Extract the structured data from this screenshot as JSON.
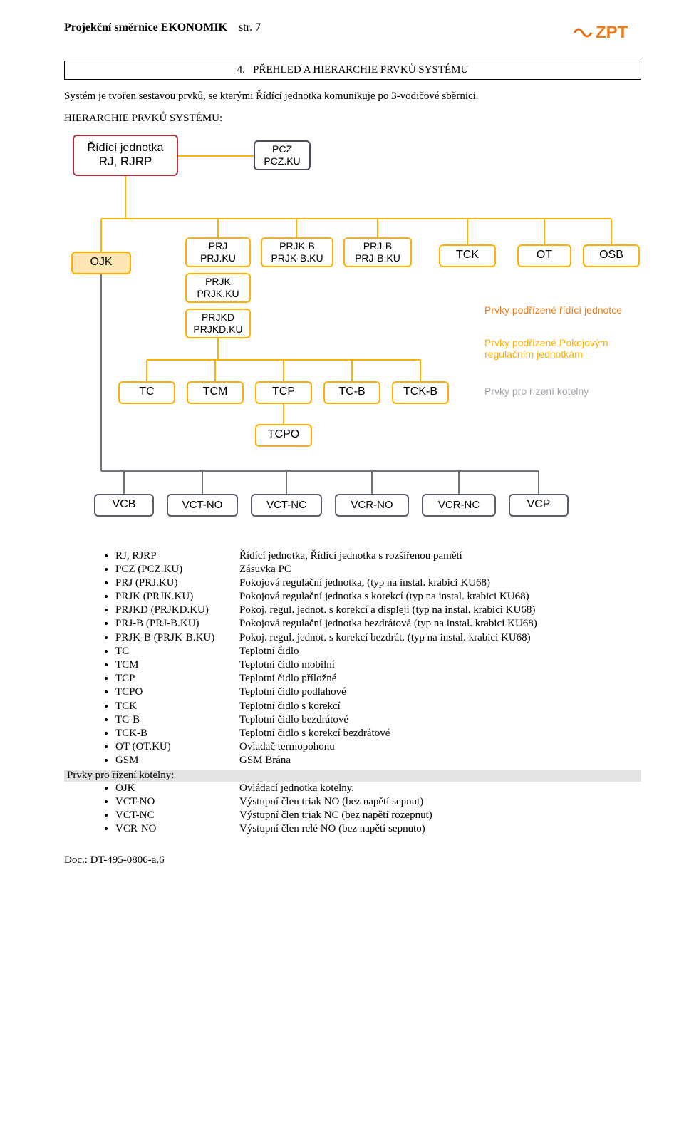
{
  "header": {
    "doc_title": "Projekční směrnice EKONOMIK",
    "page_label": "str.",
    "page_number": "7",
    "logo_text": "ZPT",
    "logo_color": "#ed7b16",
    "wave_color": "#e76b0f"
  },
  "section": {
    "number": "4.",
    "title": "PŘEHLED A HIERARCHIE PRVKŮ SYSTÉMU"
  },
  "intro": "Systém je tvořen sestavou prvků, se kterými Řídící jednotka komunikuje po 3-vodičové sběrnici.",
  "subheader": "HIERARCHIE PRVKŮ SYSTÉMU:",
  "diagram": {
    "colors": {
      "red_border": "#ae2f3e",
      "orange_border": "#ffb000",
      "orange_fill": "#ffe6b3",
      "gray_border": "#585e6e",
      "darkgray_border": "#494f60",
      "orange_line": "#ffb000",
      "gray_line": "#70747f",
      "legend_orange": "#ec7c1a",
      "legend_amber": "#ffb000",
      "legend_gray": "#a1a5ae"
    },
    "boxes": {
      "ridici": {
        "l1": "Řídící jednotka",
        "l2": "RJ, RJRP"
      },
      "pcz": {
        "l1": "PCZ",
        "l2": "PCZ.KU"
      },
      "ojk": {
        "l1": "OJK"
      },
      "prj": {
        "l1": "PRJ",
        "l2": "PRJ.KU"
      },
      "prjk": {
        "l1": "PRJK",
        "l2": "PRJK.KU"
      },
      "prjkd": {
        "l1": "PRJKD",
        "l2": "PRJKD.KU"
      },
      "prjkb": {
        "l1": "PRJK-B",
        "l2": "PRJK-B.KU"
      },
      "prjb": {
        "l1": "PRJ-B",
        "l2": "PRJ-B.KU"
      },
      "tck": {
        "l1": "TCK"
      },
      "ot": {
        "l1": "OT"
      },
      "osb": {
        "l1": "OSB"
      },
      "tc": {
        "l1": "TC"
      },
      "tcm": {
        "l1": "TCM"
      },
      "tcp": {
        "l1": "TCP"
      },
      "tcb": {
        "l1": "TC-B"
      },
      "tckb": {
        "l1": "TCK-B"
      },
      "tcpo": {
        "l1": "TCPO"
      },
      "vcb": {
        "l1": "VCB"
      },
      "vctno": {
        "l1": "VCT-NO"
      },
      "vctnc": {
        "l1": "VCT-NC"
      },
      "vcrno": {
        "l1": "VCR-NO"
      },
      "vcrnc": {
        "l1": "VCR-NC"
      },
      "vcp": {
        "l1": "VCP"
      }
    },
    "legend": {
      "l1": "Prvky podřízené řídící jednotce",
      "l2": "Prvky podřízené Pokojovým regulačním jednotkám",
      "l3": "Prvky pro řízení kotelny"
    }
  },
  "definitions": {
    "items": [
      {
        "term": "RJ, RJRP",
        "desc": "Řídící jednotka, Řídící jednotka s rozšířenou pamětí"
      },
      {
        "term": "PCZ (PCZ.KU)",
        "desc": "Zásuvka PC"
      },
      {
        "term": "PRJ (PRJ.KU)",
        "desc": "Pokojová regulační jednotka, (typ na instal. krabici KU68)"
      },
      {
        "term": "PRJK (PRJK.KU)",
        "desc": "Pokojová regulační jednotka s korekcí (typ na instal. krabici KU68)"
      },
      {
        "term": "PRJKD (PRJKD.KU)",
        "desc": "Pokoj. regul. jednot. s korekcí a displeji (typ na instal. krabici KU68)"
      },
      {
        "term": "PRJ-B  (PRJ-B.KU)",
        "desc": "Pokojová regulační jednotka bezdrátová (typ na instal. krabici KU68)"
      },
      {
        "term": "PRJK-B (PRJK-B.KU)",
        "desc": "Pokoj. regul. jednot. s korekcí bezdrát. (typ na instal. krabici KU68)"
      },
      {
        "term": "TC",
        "desc": "Teplotní čidlo"
      },
      {
        "term": "TCM",
        "desc": "Teplotní čidlo mobilní"
      },
      {
        "term": "TCP",
        "desc": "Teplotní čidlo příložné"
      },
      {
        "term": "TCPO",
        "desc": "Teplotní čidlo podlahové"
      },
      {
        "term": "TCK",
        "desc": "Teplotní čidlo s korekcí"
      },
      {
        "term": "TC-B",
        "desc": "Teplotní čidlo bezdrátové"
      },
      {
        "term": "TCK-B",
        "desc": "Teplotní čidlo s korekcí bezdrátové"
      },
      {
        "term": "OT (OT.KU)",
        "desc": "Ovladač termopohonu"
      },
      {
        "term": "GSM",
        "desc": "GSM Brána"
      }
    ],
    "group_header": "Prvky pro řízení kotelny:",
    "items2": [
      {
        "term": "OJK",
        "desc": "Ovládací jednotka kotelny."
      },
      {
        "term": "VCT-NO",
        "desc": "Výstupní člen triak NO (bez napětí sepnut)"
      },
      {
        "term": "VCT-NC",
        "desc": "Výstupní člen triak NC (bez napětí rozepnut)"
      },
      {
        "term": "VCR-NO",
        "desc": "Výstupní člen relé NO (bez napětí sepnuto)"
      }
    ]
  },
  "footer": "Doc.: DT-495-0806-a.6"
}
